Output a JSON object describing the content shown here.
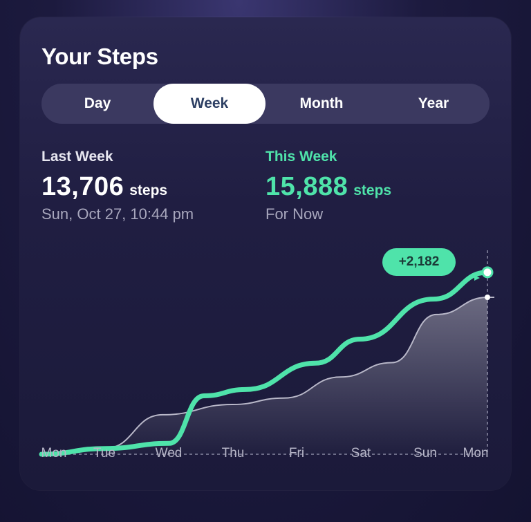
{
  "header": {
    "title": "Your Steps"
  },
  "tabs": [
    {
      "label": "Day",
      "active": false
    },
    {
      "label": "Week",
      "active": true
    },
    {
      "label": "Month",
      "active": false
    },
    {
      "label": "Year",
      "active": false
    }
  ],
  "last_week": {
    "label": "Last Week",
    "value": "13,706",
    "unit": "steps",
    "sub": "Sun, Oct 27, 10:44 pm"
  },
  "this_week": {
    "label": "This Week",
    "value": "15,888",
    "unit": "steps",
    "sub": "For Now"
  },
  "difference_badge": "+2,182",
  "colors": {
    "accent": "#4fe3aa",
    "comparison_line": "#b9b8c9",
    "active_tab_text": "#2d3f63"
  },
  "chart_data": {
    "type": "line",
    "categories": [
      "Mon",
      "Tue",
      "Wed",
      "Thu",
      "Fri",
      "Sat",
      "Sun",
      "Mon"
    ],
    "ylim": [
      0,
      16000
    ],
    "series": [
      {
        "name": "This Week",
        "cumulative_steps": [
          0,
          500,
          950,
          5100,
          5650,
          7950,
          10050,
          13550,
          15888
        ],
        "points_at": [
          0,
          1,
          2,
          2.55,
          3.2,
          4.3,
          5.0,
          6.15,
          7.0
        ]
      },
      {
        "name": "Last Week",
        "cumulative_steps": [
          0,
          520,
          3450,
          4350,
          4900,
          6750,
          8000,
          12200,
          13706
        ],
        "points_at": [
          0,
          1,
          1.9,
          3.0,
          3.8,
          4.7,
          5.5,
          6.2,
          7.0
        ]
      }
    ]
  }
}
